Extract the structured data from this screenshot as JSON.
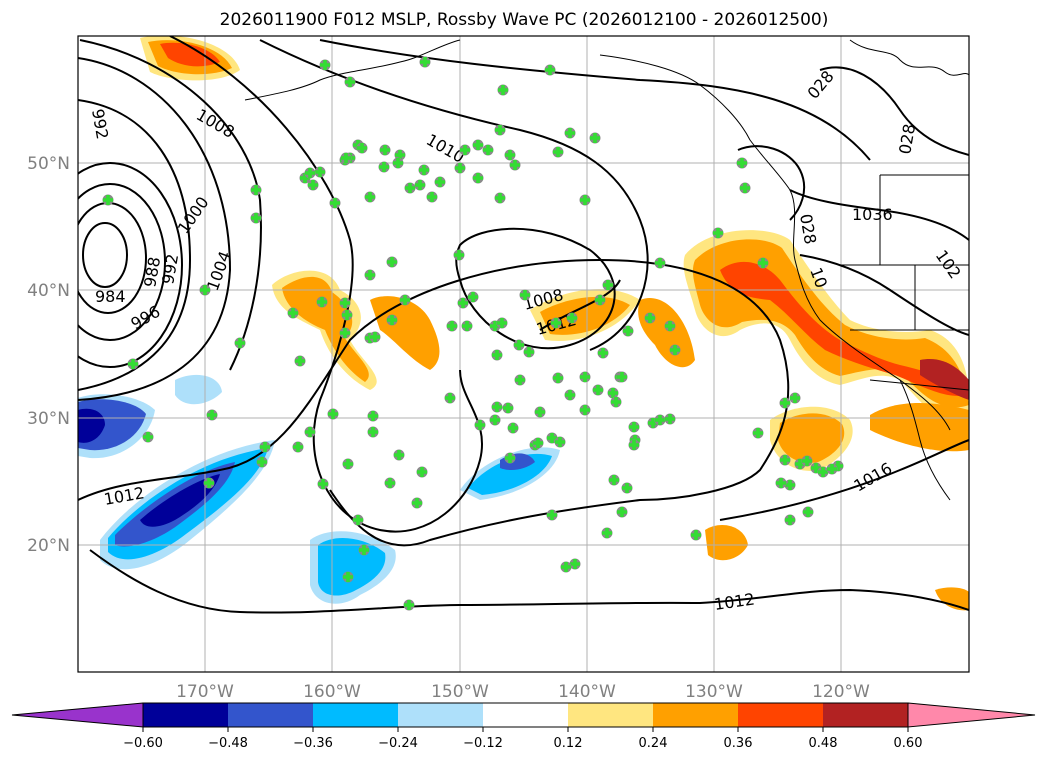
{
  "title": "2026011900 F012 MSLP, Rossby Wave PC (2026012100 - 2026012500)",
  "lat_labels": [
    "50°N",
    "40°N",
    "30°N",
    "20°N"
  ],
  "lon_labels": [
    "170°W",
    "160°W",
    "150°W",
    "140°W",
    "130°W",
    "120°W"
  ],
  "colorbar": {
    "ticks": [
      "−0.60",
      "−0.48",
      "−0.36",
      "−0.24",
      "−0.12",
      "0.12",
      "0.24",
      "0.36",
      "0.48",
      "0.60"
    ],
    "colors": [
      "#9933cc",
      "#000099",
      "#3355cc",
      "#00bbff",
      "#aee0fa",
      "#ffffff",
      "#ffe680",
      "#ffa000",
      "#ff4400",
      "#b22222",
      "#ff88aa"
    ]
  },
  "isobar_labels": [
    {
      "text": "992"
    },
    {
      "text": "1008"
    },
    {
      "text": "1010"
    },
    {
      "text": "1000"
    },
    {
      "text": "988"
    },
    {
      "text": "992"
    },
    {
      "text": "1004"
    },
    {
      "text": "984"
    },
    {
      "text": "996"
    },
    {
      "text": "1008"
    },
    {
      "text": "1012"
    },
    {
      "text": "1012"
    },
    {
      "text": "1012"
    },
    {
      "text": "1016"
    },
    {
      "text": "028"
    },
    {
      "text": "028"
    },
    {
      "text": "1036"
    },
    {
      "text": "028"
    },
    {
      "text": "102"
    },
    {
      "text": "10"
    }
  ],
  "map": {
    "lon_range": [
      -180,
      -110
    ],
    "lat_range": [
      10,
      60
    ]
  }
}
